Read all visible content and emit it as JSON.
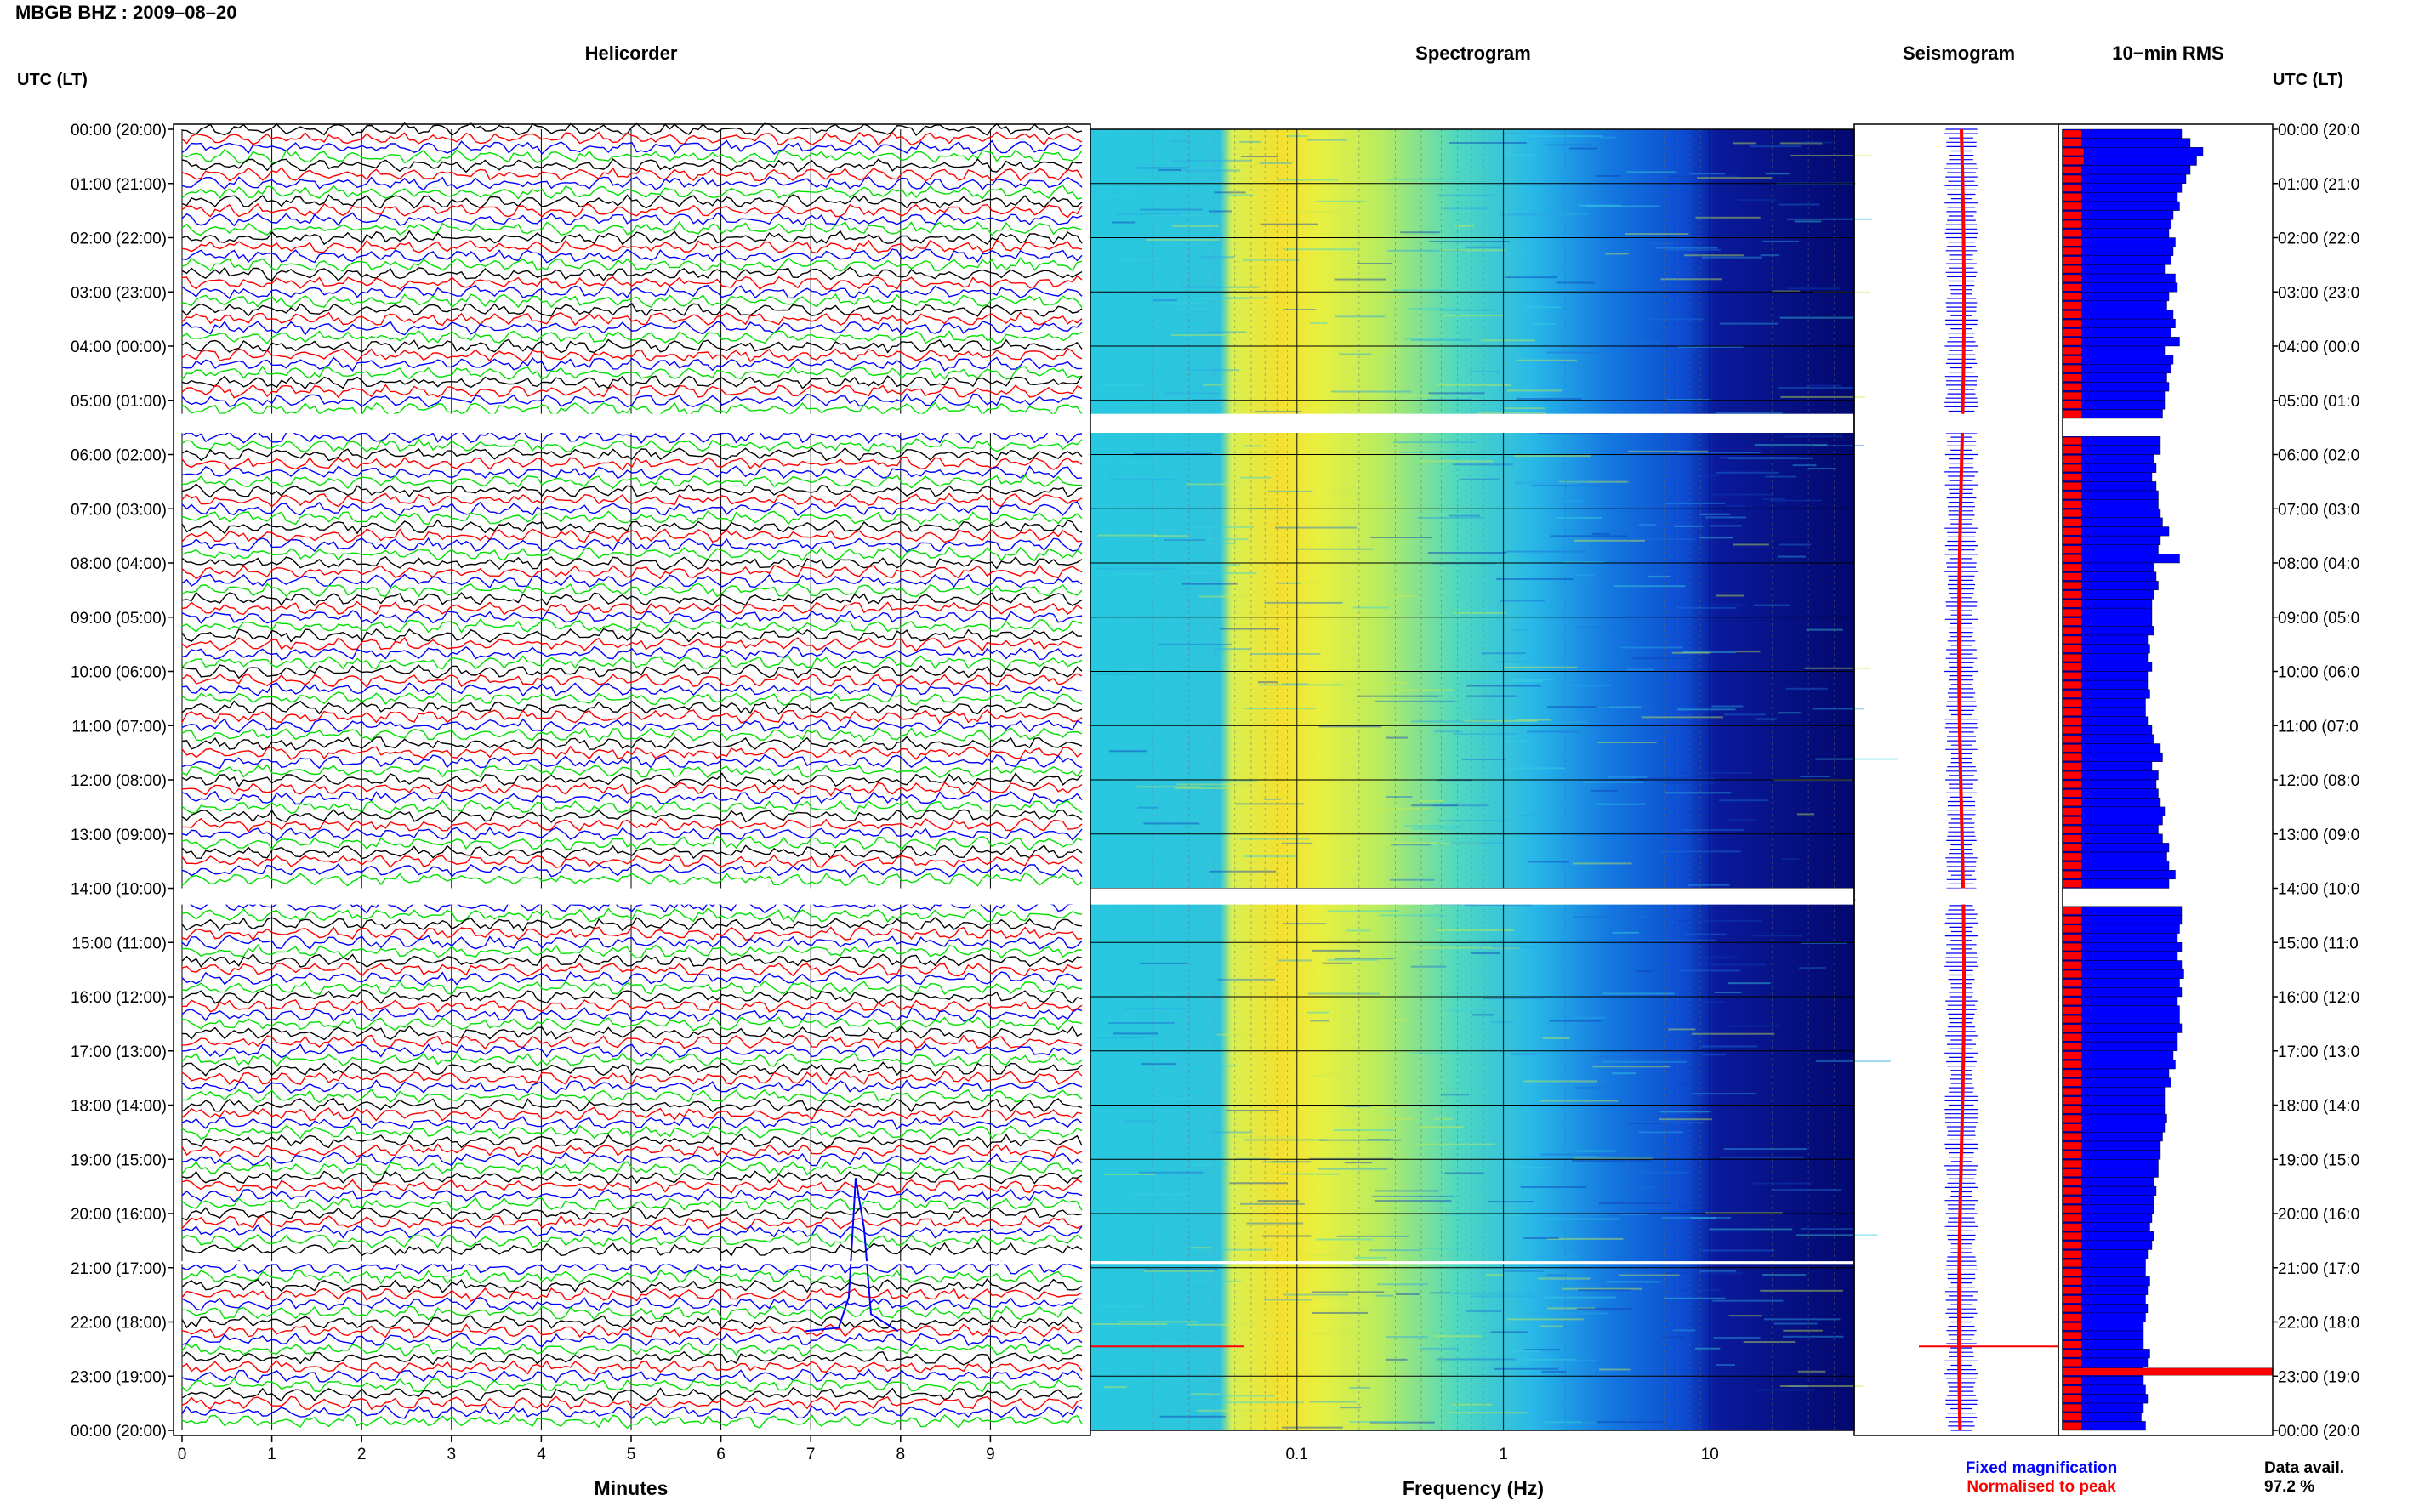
{
  "title": "MBGB BHZ : 2009–08–20",
  "panels": {
    "helicorder": "Helicorder",
    "spectrogram": "Spectrogram",
    "seismogram": "Seismogram",
    "rms": "10−min RMS"
  },
  "time_axis_header": "UTC (LT)",
  "hour_labels_left": [
    "00:00 (20:00)",
    "01:00 (21:00)",
    "02:00 (22:00)",
    "03:00 (23:00)",
    "04:00 (00:00)",
    "05:00 (01:00)",
    "06:00 (02:00)",
    "07:00 (03:00)",
    "08:00 (04:00)",
    "09:00 (05:00)",
    "10:00 (06:00)",
    "11:00 (07:00)",
    "12:00 (08:00)",
    "13:00 (09:00)",
    "14:00 (10:00)",
    "15:00 (11:00)",
    "16:00 (12:00)",
    "17:00 (13:00)",
    "18:00 (14:00)",
    "19:00 (15:00)",
    "20:00 (16:00)",
    "21:00 (17:00)",
    "22:00 (18:00)",
    "23:00 (19:00)",
    "00:00 (20:00)"
  ],
  "hour_labels_right": [
    "00:00 (20:0",
    "01:00 (21:0",
    "02:00 (22:0",
    "03:00 (23:0",
    "04:00 (00:0",
    "05:00 (01:0",
    "06:00 (02:0",
    "07:00 (03:0",
    "08:00 (04:0",
    "09:00 (05:0",
    "10:00 (06:0",
    "11:00 (07:0",
    "12:00 (08:0",
    "13:00 (09:0",
    "14:00 (10:0",
    "15:00 (11:0",
    "16:00 (12:0",
    "17:00 (13:0",
    "18:00 (14:0",
    "19:00 (15:0",
    "20:00 (16:0",
    "21:00 (17:0",
    "22:00 (18:0",
    "23:00 (19:0",
    "00:00 (20:0"
  ],
  "x_axis": {
    "minutes_label": "Minutes",
    "minutes_ticks": [
      "0",
      "1",
      "2",
      "3",
      "4",
      "5",
      "6",
      "7",
      "8",
      "9"
    ],
    "frequency_label": "Frequency (Hz)",
    "frequency_ticks": [
      "0.1",
      "1",
      "10"
    ]
  },
  "legend": {
    "fixed": "Fixed magnification",
    "normalised": "Normalised to peak"
  },
  "data_availability": {
    "label": "Data avail.",
    "value": "97.2 %"
  },
  "colors": {
    "trace_cycle": [
      "#000000",
      "#ff0000",
      "#0000ff",
      "#00e000"
    ],
    "fixed_magnification": "#0000ff",
    "normalised_to_peak": "#ff0000",
    "spectrogram_background": "#00007f"
  },
  "chart_data": [
    {
      "type": "line",
      "name": "helicorder",
      "xlabel": "Minutes",
      "xlim": [
        0,
        10
      ],
      "ylim_hours_utc": [
        0,
        24
      ],
      "traces_per_hour": 6,
      "gaps_utc_hours": [
        [
          5.25,
          5.6
        ],
        [
          14.0,
          14.3
        ],
        [
          20.88,
          20.93
        ]
      ],
      "events": [
        {
          "utc_hour": 22.17,
          "minute": 7.5,
          "shape": "spike"
        }
      ]
    },
    {
      "type": "heatmap",
      "name": "spectrogram",
      "xlabel": "Frequency (Hz)",
      "x_scale": "log",
      "xlim": [
        0.01,
        50
      ],
      "x_ticks": [
        0.1,
        1,
        10
      ],
      "colormap": "jet",
      "gaps_utc_hours": [
        [
          5.25,
          5.6
        ],
        [
          14.0,
          14.3
        ],
        [
          20.88,
          20.93
        ]
      ]
    },
    {
      "type": "line",
      "name": "seismogram",
      "series": [
        {
          "name": "Fixed magnification",
          "color": "#0000ff"
        },
        {
          "name": "Normalised to peak",
          "color": "#ff0000"
        }
      ]
    },
    {
      "type": "bar",
      "name": "10-min RMS",
      "orientation": "horizontal",
      "series": [
        {
          "name": "Fixed magnification",
          "color": "#0000ff",
          "values": [
            0.56,
            0.6,
            0.66,
            0.63,
            0.6,
            0.58,
            0.56,
            0.54,
            0.55,
            0.52,
            0.51,
            0.5,
            0.53,
            0.52,
            0.51,
            0.48,
            0.53,
            0.54,
            0.5,
            0.49,
            0.52,
            0.53,
            0.51,
            0.55,
            0.48,
            0.52,
            0.51,
            0.49,
            0.5,
            0.48,
            0.48,
            0.47,
            0.46,
            0.46,
            0.46,
            0.46,
            0.43,
            0.44,
            0.42,
            0.44,
            0.45,
            0.45,
            0.46,
            0.47,
            0.5,
            0.46,
            0.45,
            0.55,
            0.43,
            0.44,
            0.45,
            0.43,
            0.42,
            0.42,
            0.42,
            0.43,
            0.4,
            0.41,
            0.4,
            0.42,
            0.4,
            0.4,
            0.41,
            0.39,
            0.39,
            0.4,
            0.42,
            0.43,
            0.46,
            0.47,
            0.42,
            0.45,
            0.44,
            0.45,
            0.46,
            0.48,
            0.47,
            0.45,
            0.47,
            0.5,
            0.49,
            0.5,
            0.53,
            0.5,
            0.55,
            0.56,
            0.56,
            0.56,
            0.55,
            0.54,
            0.56,
            0.54,
            0.56,
            0.57,
            0.55,
            0.56,
            0.54,
            0.55,
            0.55,
            0.56,
            0.54,
            0.54,
            0.52,
            0.53,
            0.5,
            0.51,
            0.48,
            0.48,
            0.48,
            0.49,
            0.48,
            0.47,
            0.46,
            0.46,
            0.45,
            0.45,
            0.43,
            0.44,
            0.43,
            0.43,
            0.42,
            0.41,
            0.43,
            0.42,
            0.4,
            0.39,
            0.39,
            0.41,
            0.4,
            0.39,
            0.4,
            0.39,
            0.38,
            0.38,
            0.38,
            0.41,
            0.4,
            0.38,
            0.38,
            0.39,
            0.4,
            0.38,
            0.37,
            0.39
          ]
        },
        {
          "name": "Normalised to peak",
          "color": "#ff0000",
          "values": [
            0.09,
            0.09,
            0.1,
            0.1,
            0.09,
            0.09,
            0.09,
            0.09,
            0.09,
            0.09,
            0.09,
            0.09,
            0.09,
            0.09,
            0.09,
            0.09,
            0.09,
            0.09,
            0.09,
            0.09,
            0.09,
            0.09,
            0.09,
            0.09,
            0.09,
            0.09,
            0.09,
            0.09,
            0.09,
            0.09,
            0.09,
            0.09,
            0.09,
            0.09,
            0.09,
            0.09,
            0.09,
            0.09,
            0.09,
            0.09,
            0.09,
            0.09,
            0.09,
            0.09,
            0.09,
            0.09,
            0.09,
            0.09,
            0.09,
            0.09,
            0.09,
            0.09,
            0.09,
            0.09,
            0.09,
            0.09,
            0.09,
            0.09,
            0.09,
            0.09,
            0.09,
            0.09,
            0.09,
            0.09,
            0.09,
            0.09,
            0.09,
            0.09,
            0.09,
            0.09,
            0.09,
            0.09,
            0.09,
            0.09,
            0.09,
            0.09,
            0.09,
            0.09,
            0.09,
            0.09,
            0.09,
            0.09,
            0.09,
            0.09,
            0.09,
            0.09,
            0.09,
            0.09,
            0.09,
            0.09,
            0.09,
            0.09,
            0.09,
            0.09,
            0.09,
            0.09,
            0.09,
            0.09,
            0.09,
            0.09,
            0.09,
            0.09,
            0.09,
            0.09,
            0.09,
            0.09,
            0.09,
            0.09,
            0.09,
            0.09,
            0.09,
            0.09,
            0.09,
            0.09,
            0.09,
            0.09,
            0.09,
            0.09,
            0.09,
            0.09,
            0.09,
            0.09,
            0.09,
            0.09,
            0.09,
            0.09,
            0.09,
            0.09,
            0.09,
            0.09,
            0.09,
            0.09,
            0.09,
            0.09,
            0.09,
            0.09,
            0.09,
            1.0,
            0.09,
            0.09,
            0.09,
            0.09,
            0.09,
            0.09
          ]
        }
      ],
      "rms_gaps_10min_index": [
        32,
        33,
        84,
        85
      ]
    }
  ]
}
